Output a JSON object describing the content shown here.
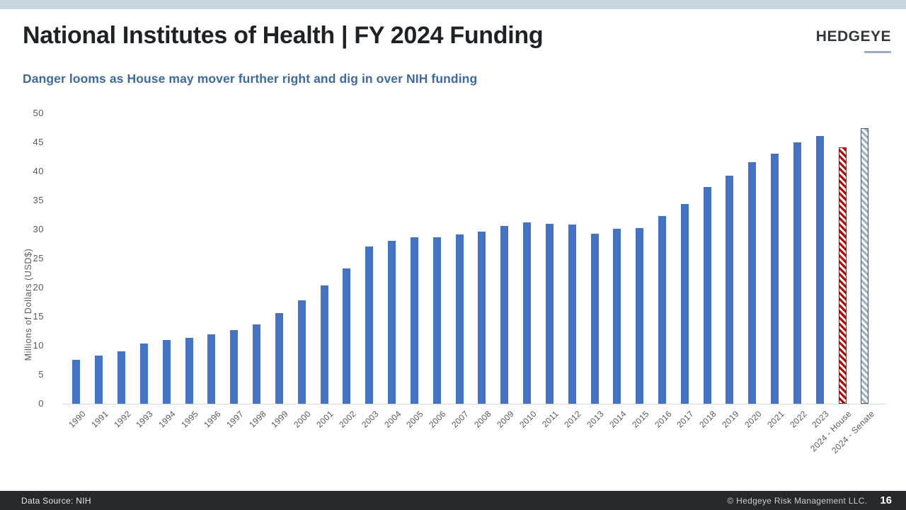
{
  "header": {
    "title": "National Institutes of Health | FY 2024 Funding",
    "subtitle": "Danger looms as House may mover further right and dig in over NIH funding",
    "logo": "HEDGEYE"
  },
  "footer": {
    "source": "Data Source: NIH",
    "copyright": "© Hedgeye Risk Management LLC.",
    "page": "16"
  },
  "colors": {
    "top_bar": "#C9D5DF",
    "title_text": "#1E2227",
    "subtitle_text": "#3E6A9E",
    "logo_text": "#33373C",
    "logo_underline": "#9AABBD",
    "footer_bg": "#26282C",
    "footer_source_text": "#E8E8E8",
    "footer_copyright_text": "#CFCFCF",
    "axis_text": "#595959",
    "axis_line": "#D9D9D9"
  },
  "chart_data": {
    "type": "bar",
    "title": "",
    "xlabel": "",
    "ylabel": "Millions of Dollars (USD$)",
    "ylim": [
      0,
      50
    ],
    "yticks": [
      0,
      5,
      10,
      15,
      20,
      25,
      30,
      35,
      40,
      45,
      50
    ],
    "grid": false,
    "legend": false,
    "bar_color_default": "#4472C4",
    "categories": [
      "1990",
      "1991",
      "1992",
      "1993",
      "1994",
      "1995",
      "1996",
      "1997",
      "1998",
      "1999",
      "2000",
      "2001",
      "2002",
      "2003",
      "2004",
      "2005",
      "2006",
      "2007",
      "2008",
      "2009",
      "2010",
      "2011",
      "2012",
      "2013",
      "2014",
      "2015",
      "2016",
      "2017",
      "2018",
      "2019",
      "2020",
      "2021",
      "2022",
      "2023",
      "2024 - House",
      "2024 - Senate"
    ],
    "values": [
      7.6,
      8.3,
      9.0,
      10.4,
      11.0,
      11.3,
      11.9,
      12.7,
      13.6,
      15.6,
      17.8,
      20.4,
      23.3,
      27.1,
      28.0,
      28.6,
      28.6,
      29.2,
      29.6,
      30.6,
      31.2,
      31.0,
      30.9,
      29.3,
      30.1,
      30.3,
      32.3,
      34.4,
      37.3,
      39.3,
      41.6,
      43.0,
      45.0,
      46.1,
      44.2,
      47.4
    ],
    "special_bars": [
      {
        "index": 34,
        "category": "2024 - House",
        "pattern": "diagonal-hatch",
        "border_color": "#C00000",
        "stripe_color": "#C00000"
      },
      {
        "index": 35,
        "category": "2024 - Senate",
        "pattern": "diagonal-hatch",
        "border_color": "#44546A",
        "stripe_color": "#A3B0C2"
      }
    ]
  }
}
